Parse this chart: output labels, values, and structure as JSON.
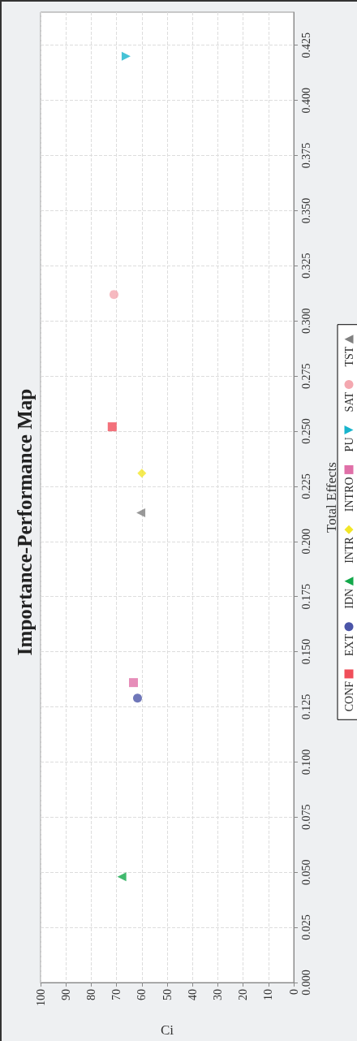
{
  "chart_data": {
    "type": "scatter",
    "title": "Importance-Performance Map",
    "xlabel": "Ci",
    "ylabel": "Total Effects",
    "xlim": [
      100,
      0
    ],
    "xticks": [
      100,
      90,
      80,
      70,
      60,
      50,
      40,
      30,
      20,
      10,
      0
    ],
    "ylim": [
      0,
      0.44
    ],
    "yticks": [
      {
        "value": 0,
        "label": "0.000"
      },
      {
        "value": 0.025,
        "label": "0.025"
      },
      {
        "value": 0.05,
        "label": "0.050"
      },
      {
        "value": 0.075,
        "label": "0.075"
      },
      {
        "value": 0.1,
        "label": "0.100"
      },
      {
        "value": 0.125,
        "label": "0.125"
      },
      {
        "value": 0.15,
        "label": "0.150"
      },
      {
        "value": 0.175,
        "label": "0.175"
      },
      {
        "value": 0.2,
        "label": "0.200"
      },
      {
        "value": 0.225,
        "label": "0.225"
      },
      {
        "value": 0.25,
        "label": "0.250"
      },
      {
        "value": 0.275,
        "label": "0.275"
      },
      {
        "value": 0.3,
        "label": "0.300"
      },
      {
        "value": 0.325,
        "label": "0.325"
      },
      {
        "value": 0.35,
        "label": "0.350"
      },
      {
        "value": 0.375,
        "label": "0.375"
      },
      {
        "value": 0.4,
        "label": "0.400"
      },
      {
        "value": 0.425,
        "label": "0.425"
      }
    ],
    "grid": true,
    "legend": "right",
    "series": [
      {
        "name": "CONF",
        "color": "#f04e5a",
        "marker": "square",
        "x": [
          71.7
        ],
        "values": [
          0.252
        ]
      },
      {
        "name": "EXT",
        "color": "#4b55a8",
        "marker": "circle",
        "x": [
          61.7
        ],
        "values": [
          0.129
        ]
      },
      {
        "name": "IDN",
        "color": "#12a84a",
        "marker": "triangle",
        "x": [
          67.9
        ],
        "values": [
          0.048
        ]
      },
      {
        "name": "INTR",
        "color": "#f2e628",
        "marker": "diamond",
        "x": [
          60.0
        ],
        "values": [
          0.231
        ]
      },
      {
        "name": "INTRO",
        "color": "#e070a8",
        "marker": "square",
        "x": [
          63.3
        ],
        "values": [
          0.136
        ]
      },
      {
        "name": "PU",
        "color": "#18b4cc",
        "marker": "triangle-down",
        "x": [
          66.2
        ],
        "values": [
          0.42
        ]
      },
      {
        "name": "SAT",
        "color": "#f4a8b0",
        "marker": "circle",
        "x": [
          71.0
        ],
        "values": [
          0.312
        ]
      },
      {
        "name": "TST",
        "color": "#808080",
        "marker": "triangle",
        "x": [
          60.4
        ],
        "values": [
          0.213
        ]
      }
    ]
  }
}
